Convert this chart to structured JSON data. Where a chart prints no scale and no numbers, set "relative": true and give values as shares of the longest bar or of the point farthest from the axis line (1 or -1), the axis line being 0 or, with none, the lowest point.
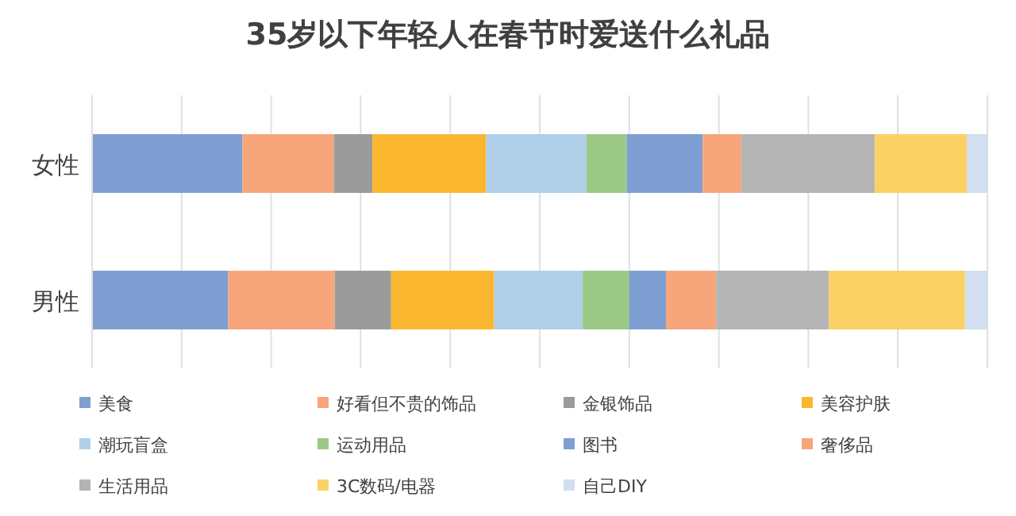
{
  "chart_data": {
    "type": "bar",
    "title": "35岁以下年轻人在春节时爱送什么礼品",
    "orientation": "horizontal",
    "stacked": true,
    "relative": true,
    "grid": "x",
    "legend": "bottom",
    "categories": [
      "女性",
      "男性"
    ],
    "series": [
      {
        "name": "美食",
        "color": "#7f9fd3",
        "values": [
          0.168,
          0.152
        ]
      },
      {
        "name": "好看但不贵的饰品",
        "color": "#f7a57a",
        "values": [
          0.102,
          0.119
        ]
      },
      {
        "name": "金银饰品",
        "color": "#9b9b9b",
        "values": [
          0.043,
          0.063
        ]
      },
      {
        "name": "美容护肤",
        "color": "#fbb72f",
        "values": [
          0.127,
          0.115
        ]
      },
      {
        "name": "潮玩盲盒",
        "color": "#b0cfe9",
        "values": [
          0.112,
          0.099
        ]
      },
      {
        "name": "运动用品",
        "color": "#9bc985",
        "values": [
          0.045,
          0.052
        ]
      },
      {
        "name": "图书",
        "color": "#7f9fd3",
        "values": [
          0.085,
          0.041
        ]
      },
      {
        "name": "奢侈品",
        "color": "#f7a57a",
        "values": [
          0.043,
          0.056
        ]
      },
      {
        "name": "生活用品",
        "color": "#b4b4b4",
        "values": [
          0.149,
          0.126
        ]
      },
      {
        "name": "3C数码/电器",
        "color": "#fbd163",
        "values": [
          0.103,
          0.152
        ]
      },
      {
        "name": "自己DIY",
        "color": "#d3dff0",
        "values": [
          0.023,
          0.025
        ]
      }
    ]
  }
}
